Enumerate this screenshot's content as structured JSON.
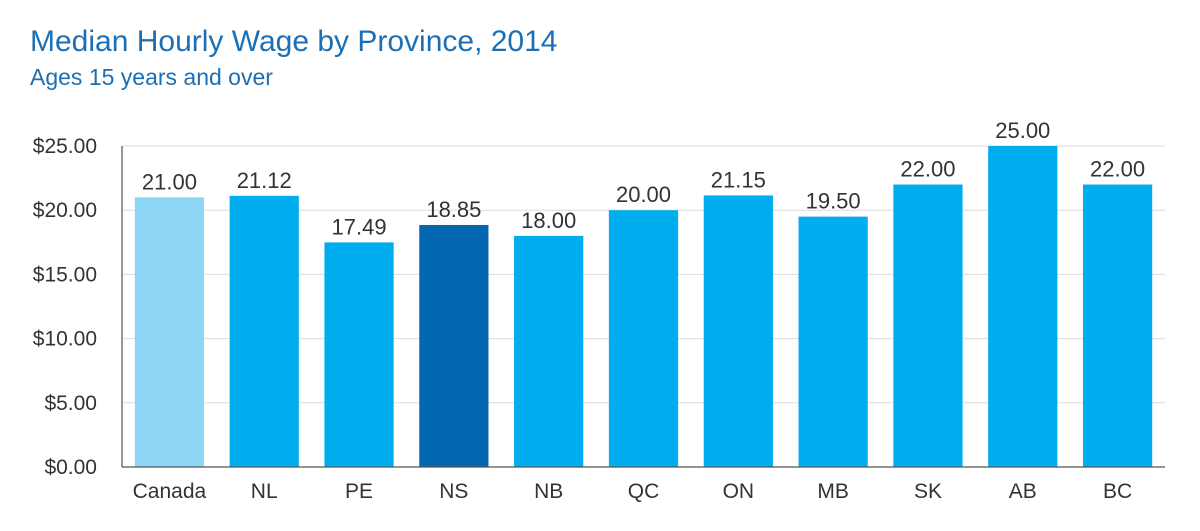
{
  "title": "Median Hourly Wage by Province, 2014",
  "subtitle": "Ages 15 years and over",
  "colors": {
    "title": "#1c6fb5",
    "gridline": "#dcdcdc",
    "axis": "#555555",
    "text": "#333333"
  },
  "chart_data": {
    "type": "bar",
    "title": "Median Hourly Wage by Province, 2014",
    "subtitle": "Ages 15 years and over",
    "xlabel": "",
    "ylabel": "",
    "categories": [
      "Canada",
      "NL",
      "PE",
      "NS",
      "NB",
      "QC",
      "ON",
      "MB",
      "SK",
      "AB",
      "BC"
    ],
    "values": [
      21.0,
      21.12,
      17.49,
      18.85,
      18.0,
      20.0,
      21.15,
      19.5,
      22.0,
      25.0,
      22.0
    ],
    "value_labels": [
      "21.00",
      "21.12",
      "17.49",
      "18.85",
      "18.00",
      "20.00",
      "21.15",
      "19.50",
      "22.00",
      "25.00",
      "22.00"
    ],
    "bar_colors": [
      "#8dd5f5",
      "#00adef",
      "#00adef",
      "#0368b0",
      "#00adef",
      "#00adef",
      "#00adef",
      "#00adef",
      "#00adef",
      "#00adef",
      "#00adef"
    ],
    "ylim": [
      0,
      25
    ],
    "yticks": [
      0,
      5,
      10,
      15,
      20,
      25
    ],
    "ytick_labels": [
      "$0.00",
      "$5.00",
      "$10.00",
      "$15.00",
      "$20.00",
      "$25.00"
    ],
    "grid": true,
    "legend": "none"
  }
}
